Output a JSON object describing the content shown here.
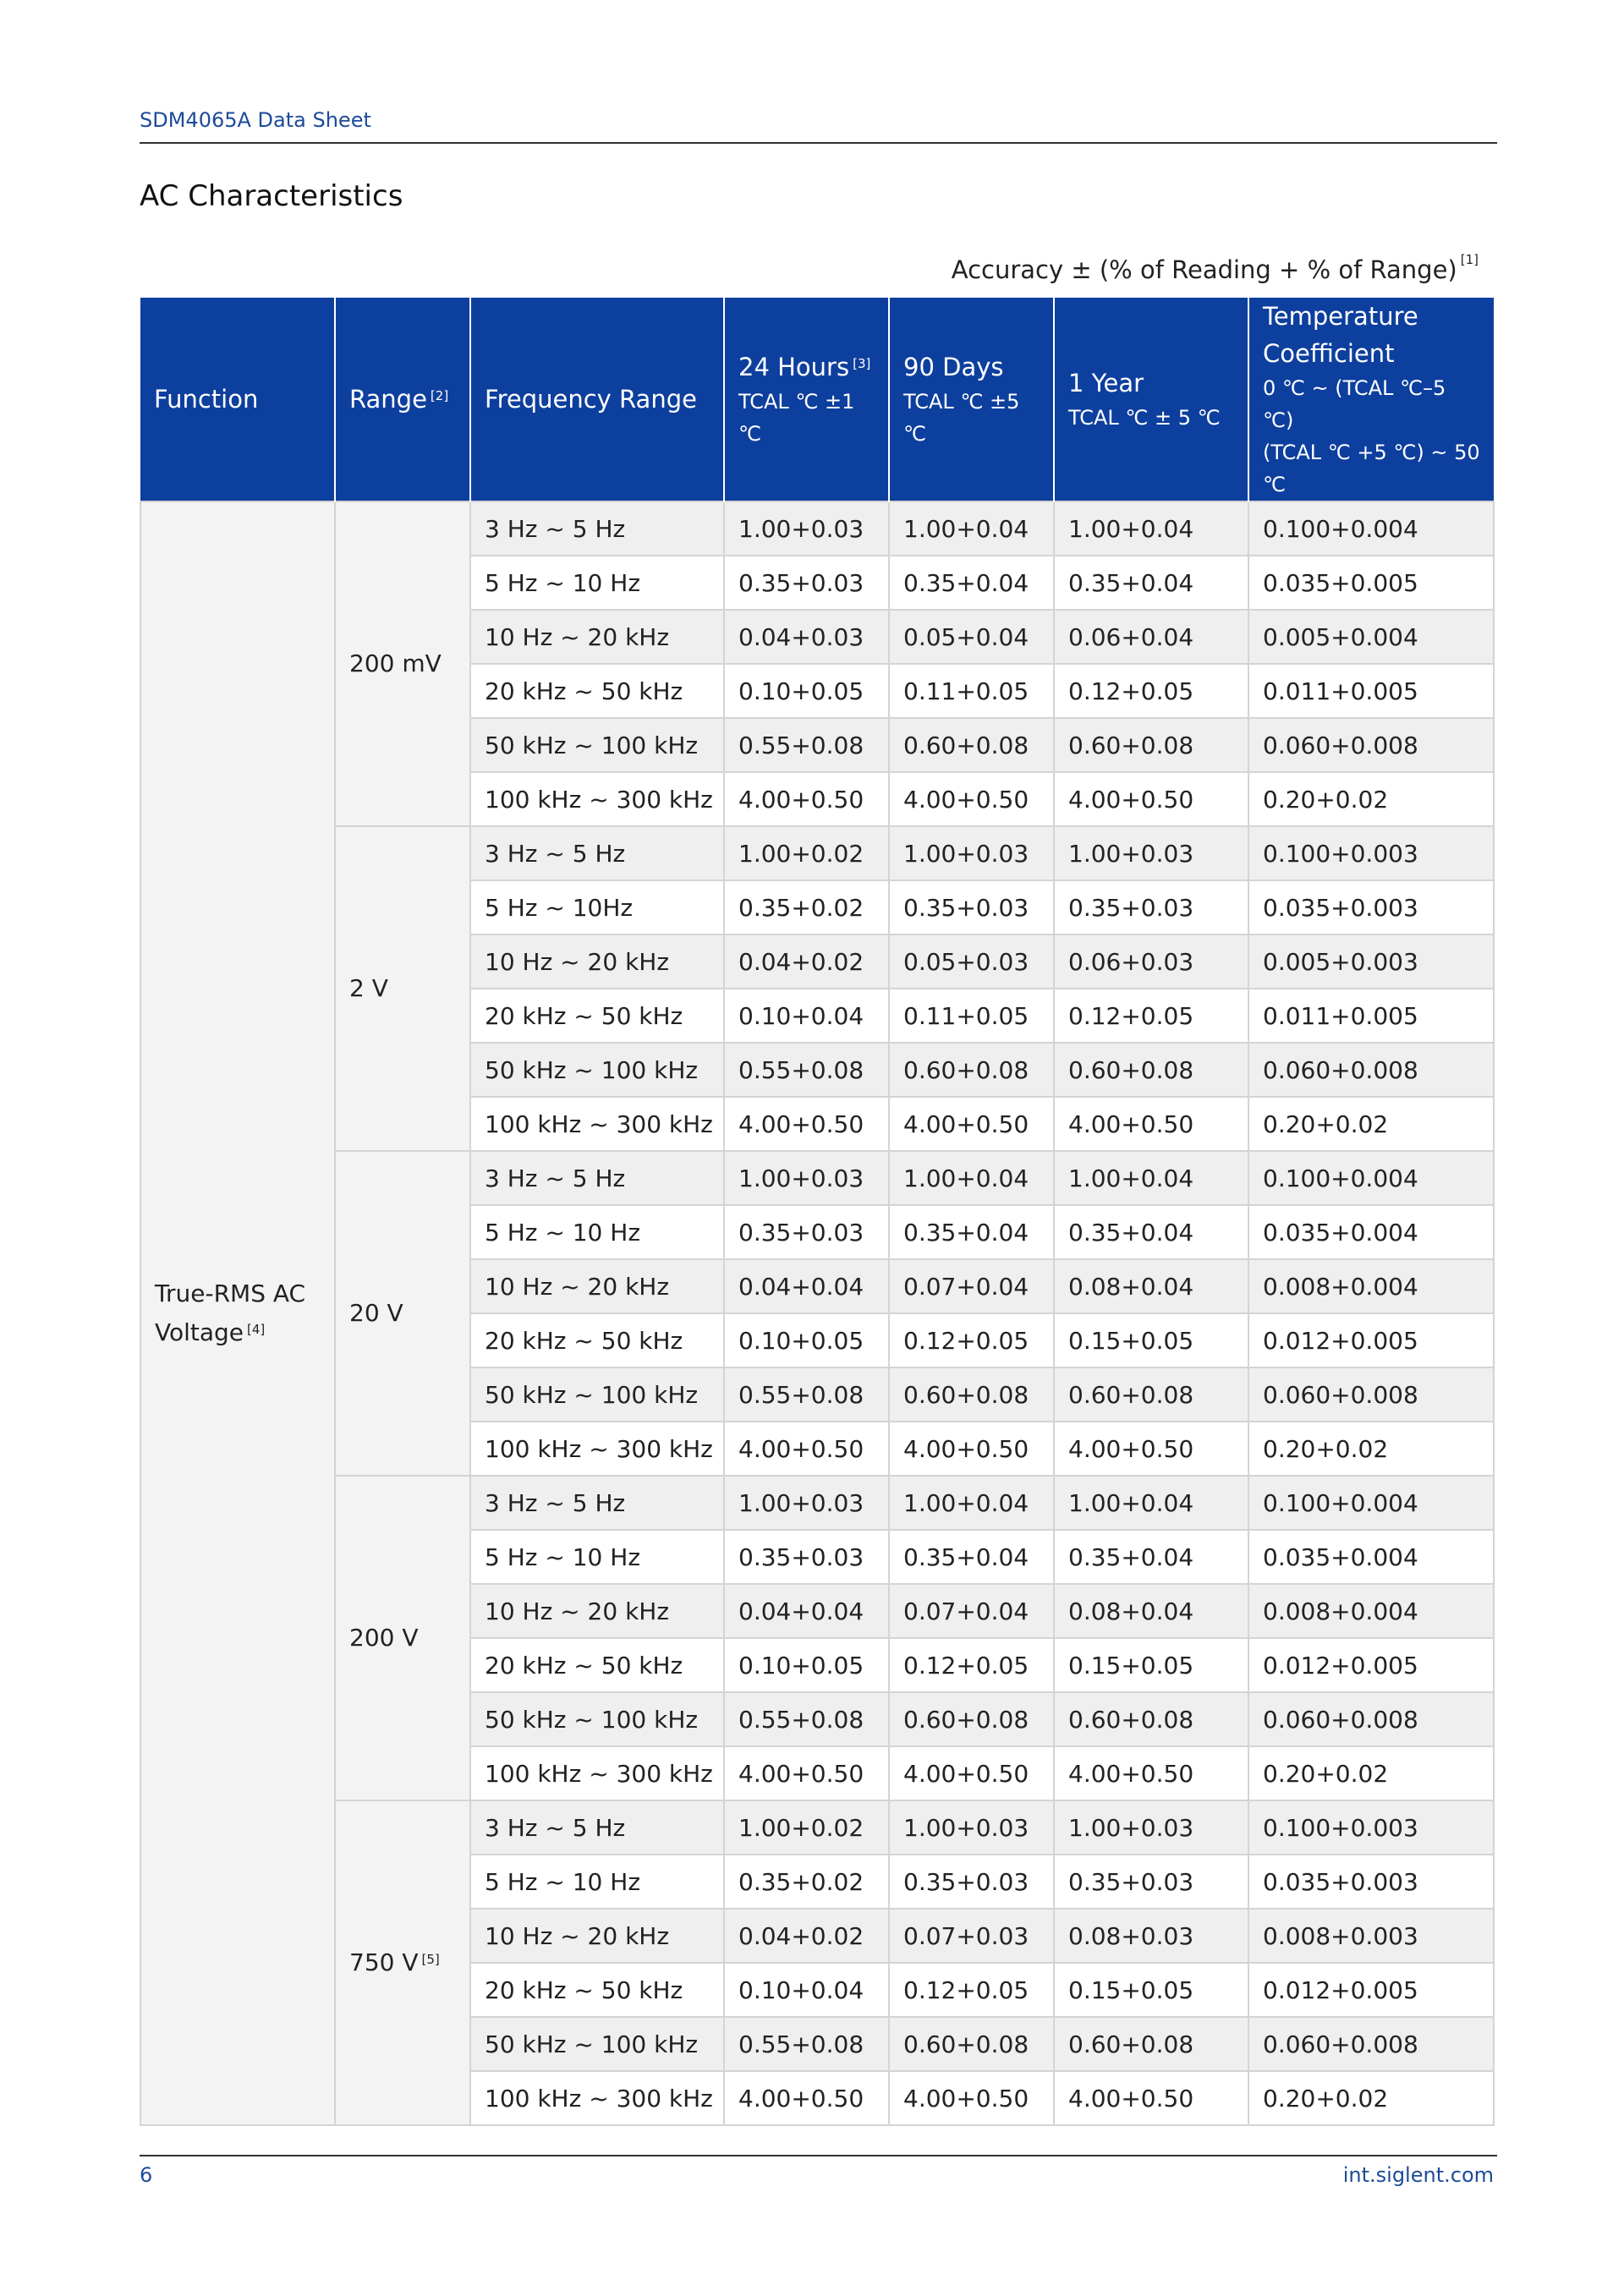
{
  "header": {
    "doc": "SDM4065A Data Sheet"
  },
  "title": "AC Characteristics",
  "accuracy": {
    "text": "Accuracy ± (% of Reading + % of Range)",
    "note": "[1]"
  },
  "table": {
    "columns": {
      "function": "Function",
      "range": {
        "label": "Range",
        "note": "[2]"
      },
      "frequency": "Frequency Range",
      "h24": {
        "label": "24 Hours",
        "note": "[3]",
        "sub": "TCAL ℃ ±1 ℃"
      },
      "d90": {
        "label": "90 Days",
        "sub": "TCAL ℃ ±5 ℃"
      },
      "y1": {
        "label": "1 Year",
        "sub": "TCAL ℃ ± 5 ℃"
      },
      "temp": {
        "label": "Temperature Coefficient",
        "sub1": "0 ℃ ~ (TCAL ℃–5 ℃)",
        "sub2": "(TCAL ℃ +5 ℃) ~ 50 ℃"
      }
    },
    "function": {
      "label": "True-RMS AC Voltage",
      "note": "[4]"
    },
    "groups": [
      {
        "range": "200 mV",
        "rows": [
          [
            "3 Hz ~ 5 Hz",
            "1.00+0.03",
            "1.00+0.04",
            "1.00+0.04",
            "0.100+0.004"
          ],
          [
            "5 Hz ~ 10 Hz",
            "0.35+0.03",
            "0.35+0.04",
            "0.35+0.04",
            "0.035+0.005"
          ],
          [
            "10 Hz ~ 20 kHz",
            "0.04+0.03",
            "0.05+0.04",
            "0.06+0.04",
            "0.005+0.004"
          ],
          [
            "20 kHz ~ 50 kHz",
            "0.10+0.05",
            "0.11+0.05",
            "0.12+0.05",
            "0.011+0.005"
          ],
          [
            "50 kHz ~ 100 kHz",
            "0.55+0.08",
            "0.60+0.08",
            "0.60+0.08",
            "0.060+0.008"
          ],
          [
            "100 kHz ~ 300 kHz",
            "4.00+0.50",
            "4.00+0.50",
            "4.00+0.50",
            "0.20+0.02"
          ]
        ]
      },
      {
        "range": "2 V",
        "rows": [
          [
            "3 Hz ~ 5 Hz",
            "1.00+0.02",
            "1.00+0.03",
            "1.00+0.03",
            "0.100+0.003"
          ],
          [
            "5 Hz ~ 10Hz",
            "0.35+0.02",
            "0.35+0.03",
            "0.35+0.03",
            "0.035+0.003"
          ],
          [
            "10 Hz ~ 20 kHz",
            "0.04+0.02",
            "0.05+0.03",
            "0.06+0.03",
            "0.005+0.003"
          ],
          [
            "20 kHz ~ 50 kHz",
            "0.10+0.04",
            "0.11+0.05",
            "0.12+0.05",
            "0.011+0.005"
          ],
          [
            "50 kHz ~ 100 kHz",
            "0.55+0.08",
            "0.60+0.08",
            "0.60+0.08",
            "0.060+0.008"
          ],
          [
            "100 kHz ~ 300 kHz",
            "4.00+0.50",
            "4.00+0.50",
            "4.00+0.50",
            "0.20+0.02"
          ]
        ]
      },
      {
        "range": "20 V",
        "rows": [
          [
            "3 Hz ~ 5 Hz",
            "1.00+0.03",
            "1.00+0.04",
            "1.00+0.04",
            "0.100+0.004"
          ],
          [
            "5 Hz ~ 10 Hz",
            "0.35+0.03",
            "0.35+0.04",
            "0.35+0.04",
            "0.035+0.004"
          ],
          [
            "10 Hz ~ 20 kHz",
            "0.04+0.04",
            "0.07+0.04",
            "0.08+0.04",
            "0.008+0.004"
          ],
          [
            "20 kHz ~ 50 kHz",
            "0.10+0.05",
            "0.12+0.05",
            "0.15+0.05",
            "0.012+0.005"
          ],
          [
            "50 kHz ~ 100 kHz",
            "0.55+0.08",
            "0.60+0.08",
            "0.60+0.08",
            "0.060+0.008"
          ],
          [
            "100 kHz ~ 300 kHz",
            "4.00+0.50",
            "4.00+0.50",
            "4.00+0.50",
            "0.20+0.02"
          ]
        ]
      },
      {
        "range": "200 V",
        "rows": [
          [
            "3 Hz ~ 5 Hz",
            "1.00+0.03",
            "1.00+0.04",
            "1.00+0.04",
            "0.100+0.004"
          ],
          [
            "5 Hz ~ 10 Hz",
            "0.35+0.03",
            "0.35+0.04",
            "0.35+0.04",
            "0.035+0.004"
          ],
          [
            "10 Hz ~ 20 kHz",
            "0.04+0.04",
            "0.07+0.04",
            "0.08+0.04",
            "0.008+0.004"
          ],
          [
            "20 kHz ~ 50 kHz",
            "0.10+0.05",
            "0.12+0.05",
            "0.15+0.05",
            "0.012+0.005"
          ],
          [
            "50 kHz ~ 100 kHz",
            "0.55+0.08",
            "0.60+0.08",
            "0.60+0.08",
            "0.060+0.008"
          ],
          [
            "100 kHz ~ 300 kHz",
            "4.00+0.50",
            "4.00+0.50",
            "4.00+0.50",
            "0.20+0.02"
          ]
        ]
      },
      {
        "range": "750 V",
        "note": "[5]",
        "rows": [
          [
            "3 Hz ~ 5 Hz",
            "1.00+0.02",
            "1.00+0.03",
            "1.00+0.03",
            "0.100+0.003"
          ],
          [
            "5 Hz ~ 10 Hz",
            "0.35+0.02",
            "0.35+0.03",
            "0.35+0.03",
            "0.035+0.003"
          ],
          [
            "10 Hz ~ 20 kHz",
            "0.04+0.02",
            "0.07+0.03",
            "0.08+0.03",
            "0.008+0.003"
          ],
          [
            "20 kHz ~ 50 kHz",
            "0.10+0.04",
            "0.12+0.05",
            "0.15+0.05",
            "0.012+0.005"
          ],
          [
            "50 kHz ~ 100 kHz",
            "0.55+0.08",
            "0.60+0.08",
            "0.60+0.08",
            "0.060+0.008"
          ],
          [
            "100 kHz ~ 300 kHz",
            "4.00+0.50",
            "4.00+0.50",
            "4.00+0.50",
            "0.20+0.02"
          ]
        ]
      }
    ]
  },
  "footer": {
    "page": "6",
    "site": "int.siglent.com"
  }
}
